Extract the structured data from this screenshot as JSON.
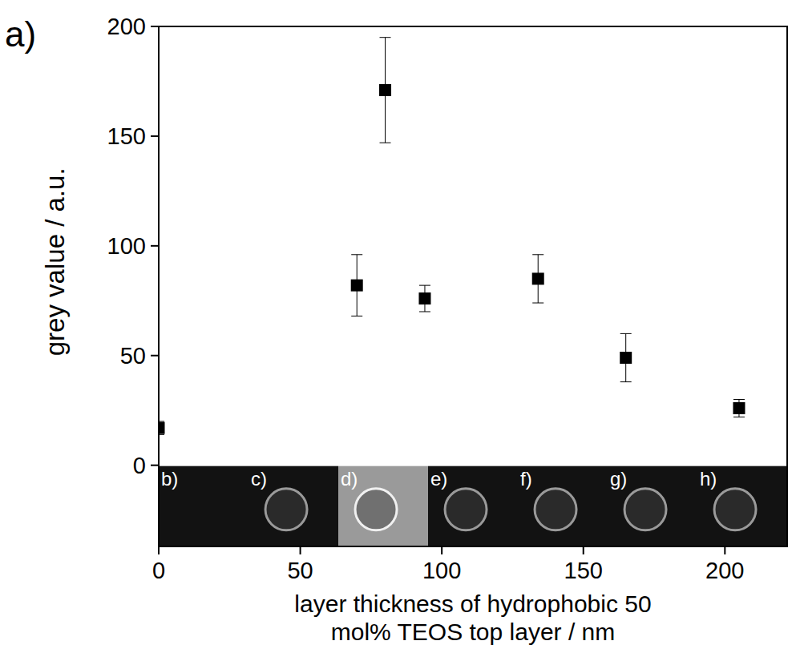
{
  "chart_data": {
    "type": "scatter",
    "panel_label": "a)",
    "x_label": "layer thickness of hydrophobic 50 mol% TEOS top layer / nm",
    "y_label": "grey value / a.u.",
    "x": [
      0,
      70,
      80,
      94,
      134,
      165,
      205
    ],
    "values": [
      17,
      82,
      171,
      76,
      85,
      49,
      26
    ],
    "errors": [
      3,
      14,
      24,
      6,
      11,
      11,
      4
    ],
    "xlim": [
      0,
      222
    ],
    "ylim": [
      -37,
      200
    ],
    "xticks": [
      0,
      50,
      100,
      150,
      200
    ],
    "yticks": [
      0,
      50,
      100,
      150,
      200
    ],
    "marker": "square",
    "color": "#000000",
    "grid": false,
    "inset_labels": [
      "b)",
      "c)",
      "d)",
      "e)",
      "f)",
      "g)",
      "h)"
    ]
  }
}
